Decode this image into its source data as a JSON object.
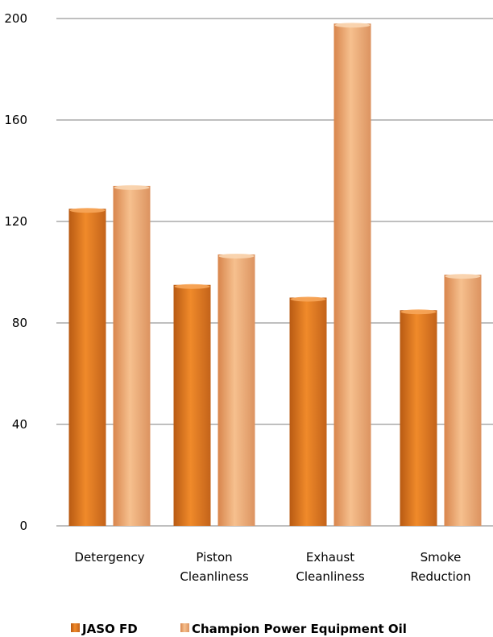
{
  "chart_data": {
    "type": "bar",
    "categories": [
      "Detergency",
      "Piston Cleanliness",
      "Exhaust Cleanliness",
      "Smoke Reduction"
    ],
    "category_lines": [
      [
        "Detergency"
      ],
      [
        "Piston",
        "Cleanliness"
      ],
      [
        "Exhaust",
        "Cleanliness"
      ],
      [
        "Smoke",
        "Reduction"
      ]
    ],
    "series": [
      {
        "name": "JASO FD",
        "values": [
          125,
          95,
          90,
          85
        ]
      },
      {
        "name": "Champion Power Equipment Oil",
        "values": [
          134,
          107,
          198,
          99
        ]
      }
    ],
    "yticks": [
      "0",
      "40",
      "80",
      "120",
      "160",
      "200"
    ],
    "ylim": [
      0,
      200
    ],
    "grid": true,
    "legend_position": "bottom",
    "colors": {
      "series_0_dark": "#b85a13",
      "series_0_mid": "#f08a2a",
      "series_1_dark": "#d8854c",
      "series_1_mid": "#f6c08e",
      "grid": "#7f7f7f"
    }
  }
}
